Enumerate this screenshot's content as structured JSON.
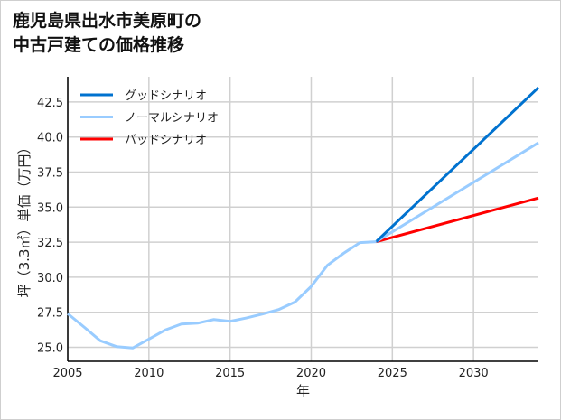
{
  "chart_data": {
    "type": "line",
    "title": "鹿児島県出水市美原町の\n中古戸建ての価格推移",
    "xlabel": "年",
    "ylabel": "坪（3.3㎡）単価（万円）",
    "xlim": [
      2005,
      2034
    ],
    "ylim": [
      24.0,
      44.3
    ],
    "xticks": [
      "2005",
      "2010",
      "2015",
      "2020",
      "2025",
      "2030"
    ],
    "yticks": [
      "25.0",
      "27.5",
      "30.0",
      "32.5",
      "35.0",
      "37.5",
      "40.0",
      "42.5"
    ],
    "grid": true,
    "legend": "top-left",
    "history": {
      "x": [
        2005,
        2006,
        2007,
        2008,
        2009,
        2010,
        2011,
        2012,
        2013,
        2014,
        2015,
        2016,
        2017,
        2018,
        2019,
        2020,
        2021,
        2022,
        2023,
        2024
      ],
      "y": [
        27.4,
        26.45,
        25.47,
        25.05,
        24.95,
        25.58,
        26.23,
        26.66,
        26.72,
        26.98,
        26.85,
        27.09,
        27.37,
        27.69,
        28.23,
        29.34,
        30.85,
        31.71,
        32.47,
        32.53
      ]
    },
    "series": [
      {
        "name": "グッドシナリオ",
        "color": "#0072cf",
        "x": [
          2024,
          2034
        ],
        "y": [
          32.53,
          43.53
        ]
      },
      {
        "name": "ノーマルシナリオ",
        "color": "#99ccff",
        "x": [
          2024,
          2034
        ],
        "y": [
          32.53,
          39.59
        ]
      },
      {
        "name": "バッドシナリオ",
        "color": "#ff0000",
        "x": [
          2024,
          2034
        ],
        "y": [
          32.53,
          35.65
        ]
      }
    ],
    "history_color": "#99ccff"
  }
}
